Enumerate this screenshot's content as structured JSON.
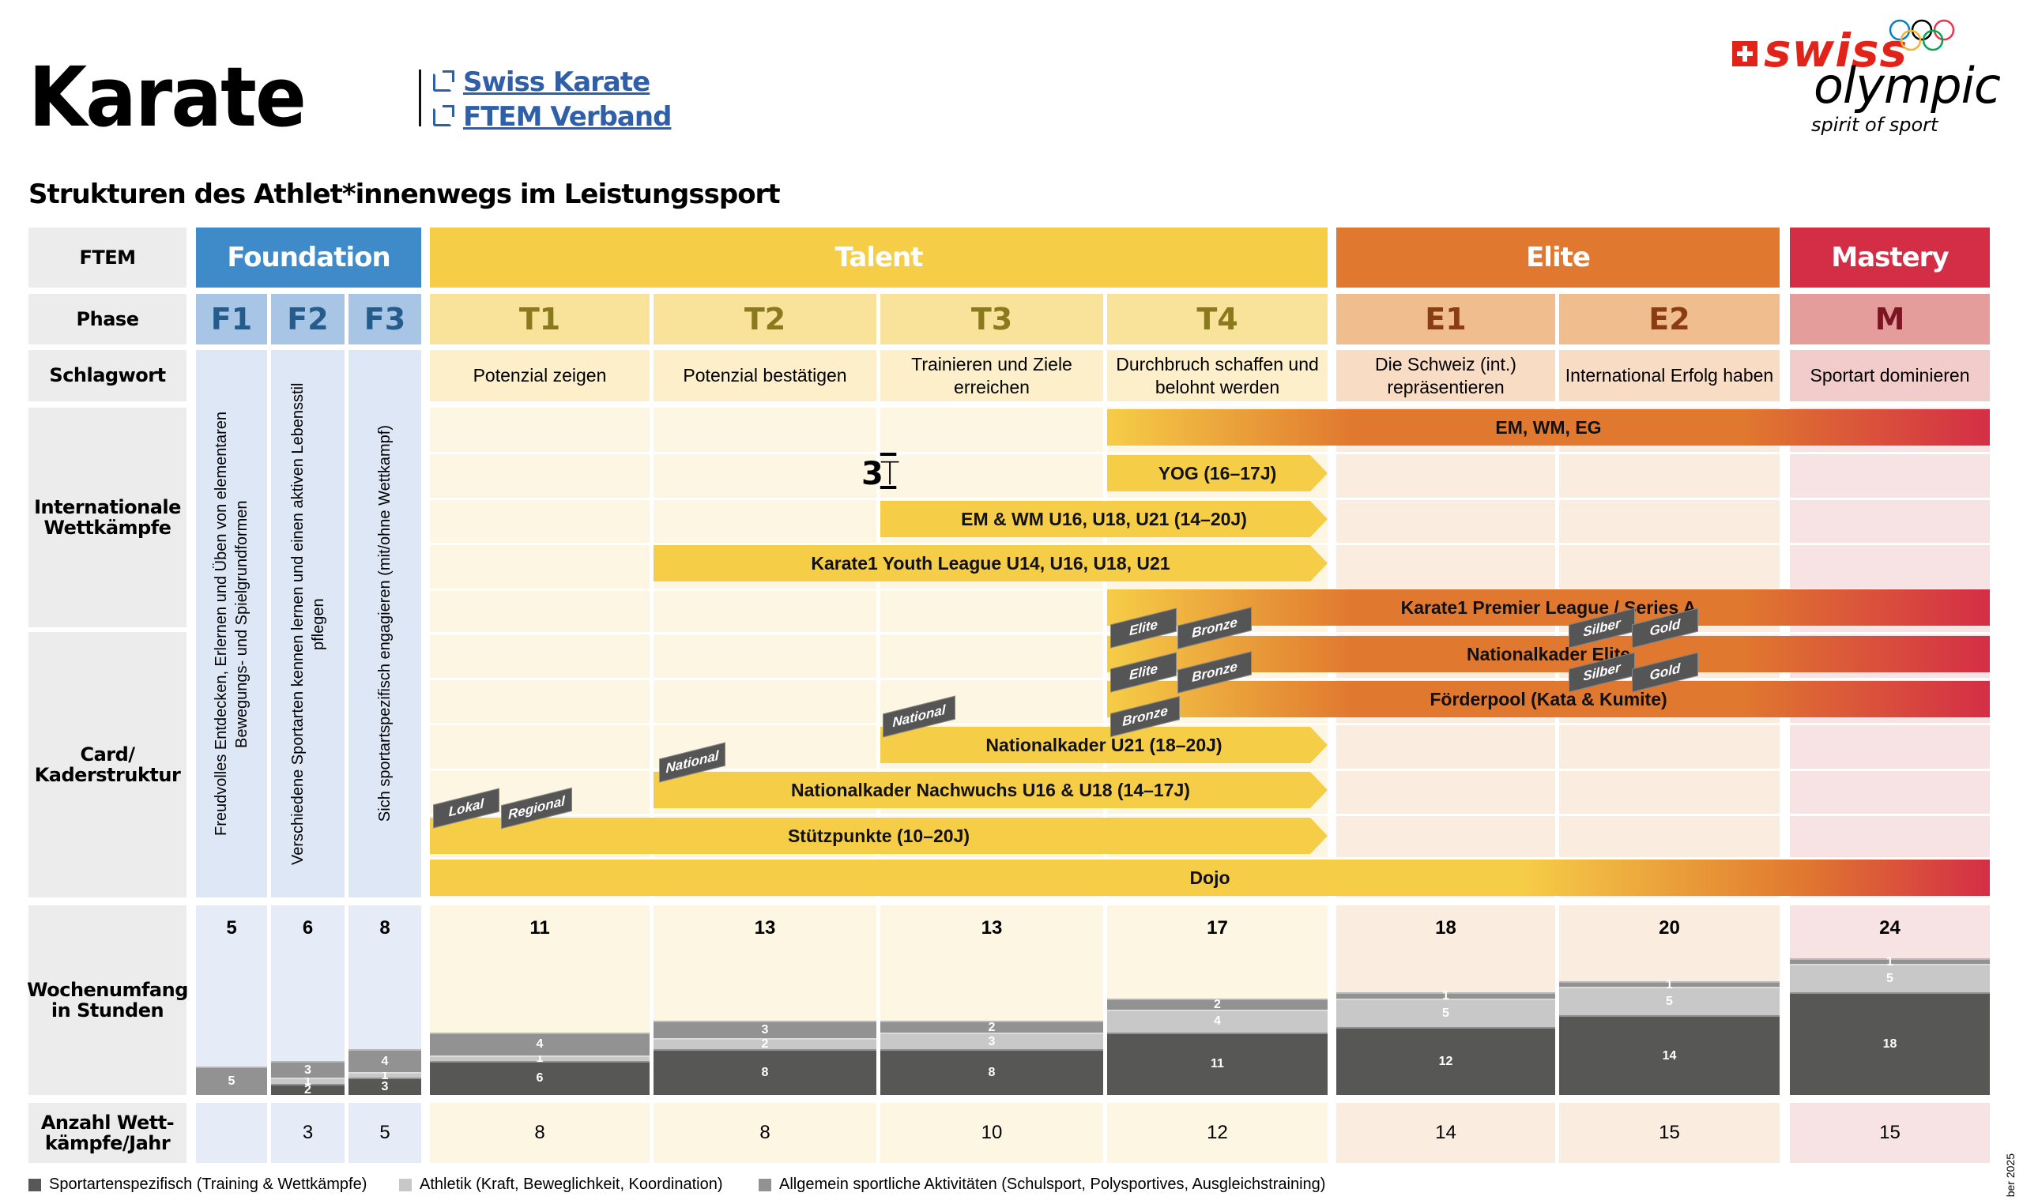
{
  "header": {
    "title": "Karate",
    "links": [
      {
        "label": "Swiss Karate",
        "icon": "external-link-icon"
      },
      {
        "label": "FTEM Verband",
        "icon": "external-link-icon"
      }
    ],
    "subtitle": "Strukturen des Athlet*innenwegs im Leistungssport",
    "logo": {
      "brand1": "swiss",
      "brand2": "olympic",
      "tagline": "spirit of sport"
    }
  },
  "colors": {
    "foundation": "#3f8bc9",
    "talent": "#f6cd47",
    "elite": "#e0782f",
    "mastery": "#d42e46",
    "sport_specific": "#575756",
    "athletics": "#c8c8c8",
    "general": "#929292"
  },
  "row_labels": {
    "ftem": "FTEM",
    "phase": "Phase",
    "schlagwort": "Schlagwort",
    "international": "Internationale Wettkämpfe",
    "card": "Card/ Kaderstruktur",
    "wochenumfang": "Wochenumfang in Stunden",
    "anzahl": "Anzahl Wett-kämpfe/Jahr"
  },
  "ftem": [
    "Foundation",
    "Talent",
    "Elite",
    "Mastery"
  ],
  "phases": [
    "F1",
    "F2",
    "F3",
    "T1",
    "T2",
    "T3",
    "T4",
    "E1",
    "E2",
    "M"
  ],
  "schlagwort": {
    "F1": "Freudvolles Entdecken, Erlernen und Üben von elementaren Bewegungs- und Spielgrundformen",
    "F2": "Verschiedene Sportarten kennen lernen und einen aktiven Lebensstil pflegen",
    "F3": "Sich sportartspezifisch engagieren (mit/ohne Wettkampf)",
    "T1": "Potenzial zeigen",
    "T2": "Potenzial bestätigen",
    "T3": "Trainieren und Ziele erreichen",
    "T4": "Durchbruch schaffen und belohnt werden",
    "E1": "Die Schweiz (int.) repräsentieren",
    "E2": "International Erfolg haben",
    "M": "Sportart dominieren"
  },
  "international": [
    {
      "label": "EM, WM, EG",
      "from": "T4",
      "to": "M"
    },
    {
      "label": "YOG (16–17J)",
      "from": "T4",
      "to": "T4"
    },
    {
      "label": "EM & WM U16, U18, U21 (14–20J)",
      "from": "T3",
      "to": "T4"
    },
    {
      "label": "Karate1 Youth League U14, U16, U18, U21",
      "from": "T2",
      "to": "T4"
    },
    {
      "label": "Karate1 Premier League / Series A",
      "from": "T4",
      "to": "M"
    }
  ],
  "card": [
    {
      "label": "Nationalkader Elite",
      "from": "T4",
      "to": "M"
    },
    {
      "label": "Förderpool (Kata & Kumite)",
      "from": "T4",
      "to": "M"
    },
    {
      "label": "Nationalkader U21 (18–20J)",
      "from": "T3",
      "to": "T4"
    },
    {
      "label": "Nationalkader Nachwuchs U16 & U18 (14–17J)",
      "from": "T2",
      "to": "T4"
    },
    {
      "label": "Stützpunkte (10–20J)",
      "from": "T1",
      "to": "T4"
    },
    {
      "label": "Dojo",
      "from": "T1",
      "to": "M"
    }
  ],
  "tags": {
    "elite": "Elite",
    "bronze": "Bronze",
    "silber": "Silber",
    "gold": "Gold",
    "national": "National",
    "lokal": "Lokal",
    "regional": "Regional"
  },
  "chart_data": {
    "type": "bar",
    "title": "Wochenumfang in Stunden",
    "categories": [
      "F1",
      "F2",
      "F3",
      "T1",
      "T2",
      "T3",
      "T4",
      "E1",
      "E2",
      "M"
    ],
    "totals": [
      5,
      6,
      8,
      11,
      13,
      13,
      17,
      18,
      20,
      24
    ],
    "series": [
      {
        "name": "Sportartenspezifisch (Training & Wettkämpfe)",
        "values": [
          0,
          2,
          3,
          6,
          8,
          8,
          11,
          12,
          14,
          18
        ]
      },
      {
        "name": "Athletik (Kraft, Beweglichkeit, Koordination)",
        "values": [
          0,
          1,
          1,
          1,
          2,
          3,
          4,
          5,
          5,
          5
        ]
      },
      {
        "name": "Allgemein sportliche Aktivitäten (Schulsport, Polysportives, Ausgleichstraining)",
        "values": [
          5,
          3,
          4,
          4,
          3,
          2,
          2,
          1,
          1,
          1
        ]
      }
    ],
    "ylim": [
      0,
      24
    ],
    "stacked": true
  },
  "anzahl": [
    "",
    "3",
    "5",
    "8",
    "8",
    "10",
    "12",
    "14",
    "15",
    "15"
  ],
  "footer": {
    "date_fragment": "ber 2025"
  }
}
